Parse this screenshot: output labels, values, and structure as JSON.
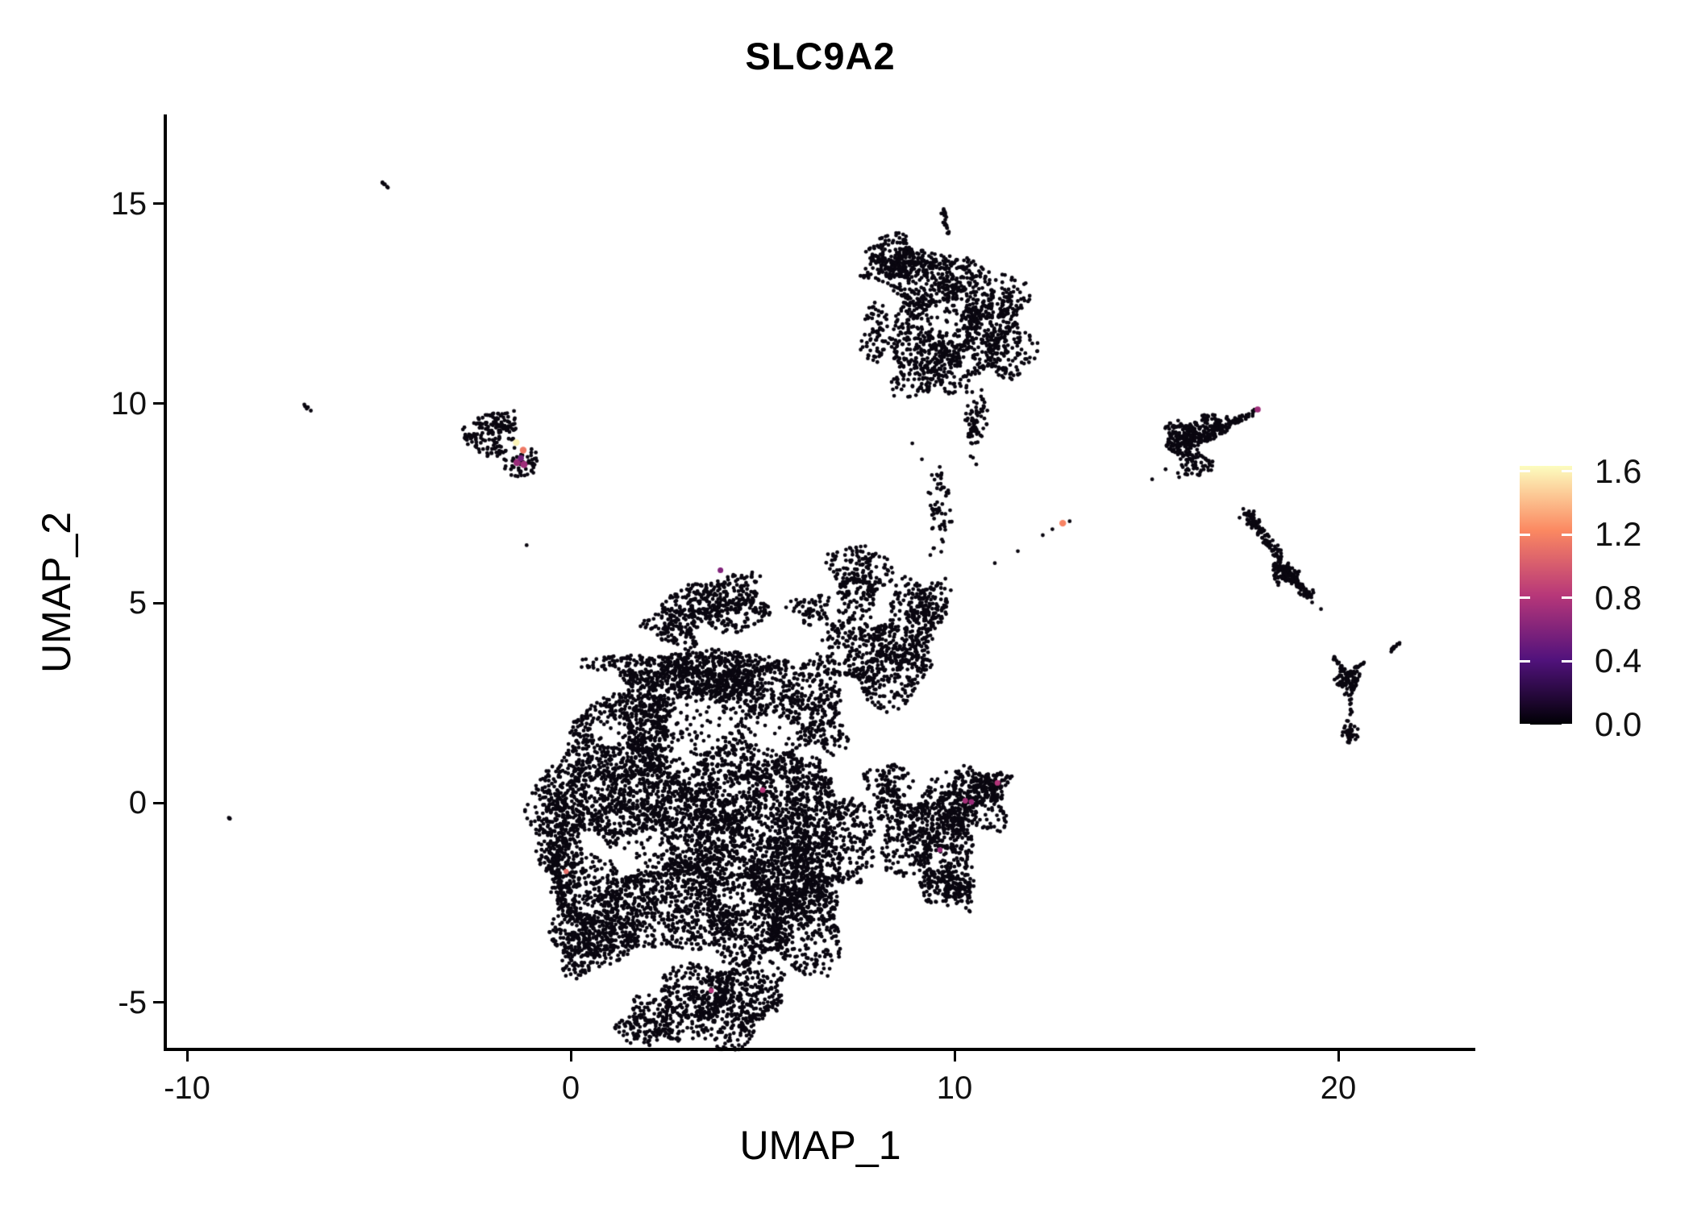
{
  "title": "SLC9A2",
  "colors": {
    "background": "#ffffff",
    "axis": "#000000",
    "text": "#111111",
    "point_black": "#0a0710"
  },
  "axes": {
    "x": {
      "label": "UMAP_1",
      "tick_labels": [
        "-10",
        "0",
        "10",
        "20"
      ],
      "tick_values": [
        -10,
        0,
        10,
        20
      ],
      "range": [
        -10.57,
        23.55
      ]
    },
    "y": {
      "label": "UMAP_2",
      "tick_labels": [
        "15",
        "10",
        "5",
        "0",
        "-5"
      ],
      "tick_values": [
        15,
        10,
        5,
        0,
        -5
      ],
      "range": [
        -6.18,
        17.23
      ]
    }
  },
  "legend": {
    "tick_labels": [
      "1.6",
      "1.2",
      "0.8",
      "0.4",
      "0.0"
    ],
    "tick_values": [
      1.6,
      1.2,
      0.8,
      0.4,
      0.0
    ],
    "max_value": 1.635,
    "palette": [
      [
        0,
        "#000004"
      ],
      [
        0.25,
        "#51127c"
      ],
      [
        0.5,
        "#b73779"
      ],
      [
        0.75,
        "#fb8861"
      ],
      [
        1,
        "#fcfdbf"
      ]
    ]
  },
  "chart_data": {
    "type": "scatter",
    "title": "SLC9A2",
    "xlabel": "UMAP_1",
    "ylabel": "UMAP_2",
    "xlim": [
      -10.57,
      23.55
    ],
    "ylim": [
      -6.18,
      17.23
    ],
    "grid": false,
    "legend_position": "right",
    "point_radius": 2.4,
    "highlight_radius": 3.5,
    "seed": 42,
    "clusters": [
      {
        "cx": 1.2,
        "cy": 0.6,
        "rx": 1.9,
        "ry": 2.0,
        "n": 1100
      },
      {
        "cx": 3.3,
        "cy": -1.6,
        "rx": 2.3,
        "ry": 2.1,
        "n": 1700
      },
      {
        "cx": 5.4,
        "cy": -2.6,
        "rx": 1.7,
        "ry": 1.7,
        "n": 1200
      },
      {
        "cx": 2.4,
        "cy": 1.9,
        "rx": 2.0,
        "ry": 1.1,
        "n": 700
      },
      {
        "cx": 4.9,
        "cy": 0.6,
        "rx": 1.7,
        "ry": 1.5,
        "n": 800
      },
      {
        "cx": 0.9,
        "cy": -2.7,
        "rx": 1.3,
        "ry": 1.4,
        "n": 500
      },
      {
        "cx": 4.0,
        "cy": -4.9,
        "rx": 1.6,
        "ry": 1.0,
        "n": 650
      },
      {
        "cx": 6.6,
        "cy": -0.9,
        "rx": 1.2,
        "ry": 1.7,
        "n": 600
      },
      {
        "cx": 3.0,
        "cy": 3.3,
        "rx": 2.3,
        "ry": 0.55,
        "n": 650
      },
      {
        "cx": 4.6,
        "cy": 2.9,
        "rx": 1.4,
        "ry": 0.8,
        "n": 350
      },
      {
        "cx": 3.9,
        "cy": 5.0,
        "rx": 1.35,
        "ry": 0.65,
        "n": 380
      },
      {
        "cx": 2.7,
        "cy": 4.4,
        "rx": 0.75,
        "ry": 0.5,
        "n": 130
      },
      {
        "cx": 6.3,
        "cy": 2.3,
        "rx": 0.9,
        "ry": 1.1,
        "n": 300
      },
      {
        "cx": -0.2,
        "cy": -1.0,
        "rx": 0.6,
        "ry": 1.7,
        "n": 450
      },
      {
        "cx": 0.3,
        "cy": -3.4,
        "rx": 0.9,
        "ry": 0.8,
        "n": 250
      },
      {
        "cx": 2.2,
        "cy": -5.5,
        "rx": 1.0,
        "ry": 0.6,
        "n": 220
      },
      {
        "cx": 6.3,
        "cy": 4.8,
        "rx": 0.55,
        "ry": 0.45,
        "n": 60
      },
      {
        "cx": 8.3,
        "cy": 0.3,
        "rx": 0.55,
        "ry": 0.75,
        "n": 150
      },
      {
        "cx": 8.1,
        "cy": 3.7,
        "rx": 1.5,
        "ry": 1.1,
        "n": 600
      },
      {
        "cx": 7.5,
        "cy": 5.6,
        "rx": 0.75,
        "ry": 0.95,
        "n": 230
      },
      {
        "cx": 9.1,
        "cy": 4.9,
        "rx": 0.75,
        "ry": 0.8,
        "n": 200
      },
      {
        "cx": 9.6,
        "cy": 7.3,
        "rx": 0.3,
        "ry": 1.1,
        "n": 60
      },
      {
        "cx": 9.4,
        "cy": -0.9,
        "rx": 1.15,
        "ry": 1.35,
        "n": 550
      },
      {
        "cx": 10.4,
        "cy": 0.0,
        "rx": 0.95,
        "ry": 0.75,
        "n": 300
      },
      {
        "cx": 10.9,
        "cy": 0.45,
        "rx": 0.5,
        "ry": 0.4,
        "n": 110
      },
      {
        "cx": 9.9,
        "cy": -2.1,
        "rx": 0.75,
        "ry": 0.6,
        "n": 170
      },
      {
        "cx": 9.8,
        "cy": 12.6,
        "rx": 1.7,
        "ry": 1.25,
        "n": 800
      },
      {
        "cx": 8.5,
        "cy": 13.6,
        "rx": 0.95,
        "ry": 0.55,
        "n": 260
      },
      {
        "cx": 11.1,
        "cy": 11.6,
        "rx": 0.95,
        "ry": 1.05,
        "n": 330
      },
      {
        "cx": 9.4,
        "cy": 10.9,
        "rx": 1.15,
        "ry": 0.8,
        "n": 280
      },
      {
        "cx": 10.55,
        "cy": 9.6,
        "rx": 0.3,
        "ry": 0.9,
        "n": 80
      },
      {
        "cx": 8.0,
        "cy": 11.8,
        "rx": 0.45,
        "ry": 0.75,
        "n": 80
      },
      {
        "cx": 16.0,
        "cy": 9.15,
        "rx": 0.55,
        "ry": 0.42,
        "n": 220
      },
      {
        "cx": 16.8,
        "cy": 9.45,
        "rx": 0.5,
        "ry": 0.3,
        "n": 90
      },
      {
        "cx": 16.25,
        "cy": 8.5,
        "rx": 0.45,
        "ry": 0.4,
        "n": 70
      },
      {
        "cx": 18.6,
        "cy": 5.75,
        "rx": 0.35,
        "ry": 0.3,
        "n": 60
      },
      {
        "cx": 20.25,
        "cy": 3.05,
        "rx": 0.32,
        "ry": 0.3,
        "n": 80
      },
      {
        "cx": 20.3,
        "cy": 1.75,
        "rx": 0.22,
        "ry": 0.25,
        "n": 40
      },
      {
        "cx": -1.95,
        "cy": 9.5,
        "rx": 0.6,
        "ry": 0.38,
        "n": 100
      },
      {
        "cx": -2.6,
        "cy": 9.15,
        "rx": 0.3,
        "ry": 0.22,
        "n": 30
      },
      {
        "cx": -2.0,
        "cy": 8.9,
        "rx": 0.55,
        "ry": 0.3,
        "n": 40
      },
      {
        "cx": -1.25,
        "cy": 8.55,
        "rx": 0.45,
        "ry": 0.3,
        "n": 45
      },
      {
        "cx": -1.6,
        "cy": 8.3,
        "rx": 0.3,
        "ry": 0.2,
        "n": 12
      }
    ],
    "streaks": [
      {
        "x1": 9.7,
        "y1": 14.85,
        "x2": 9.85,
        "y2": 14.25,
        "n": 22,
        "jitter": 0.07
      },
      {
        "x1": 16.7,
        "y1": 9.3,
        "x2": 17.85,
        "y2": 9.78,
        "n": 55,
        "jitter": 0.09
      },
      {
        "x1": 17.6,
        "y1": 7.3,
        "x2": 18.5,
        "y2": 6.1,
        "n": 110,
        "jitter": 0.14
      },
      {
        "x1": 18.4,
        "y1": 6.0,
        "x2": 19.3,
        "y2": 5.15,
        "n": 120,
        "jitter": 0.13
      },
      {
        "x1": 19.85,
        "y1": 3.7,
        "x2": 20.15,
        "y2": 3.3,
        "n": 18,
        "jitter": 0.06
      },
      {
        "x1": 20.35,
        "y1": 3.3,
        "x2": 20.7,
        "y2": 3.55,
        "n": 14,
        "jitter": 0.05
      },
      {
        "x1": 20.3,
        "y1": 2.75,
        "x2": 20.3,
        "y2": 2.2,
        "n": 10,
        "jitter": 0.05
      },
      {
        "x1": 21.35,
        "y1": 3.8,
        "x2": 21.65,
        "y2": 4.05,
        "n": 13,
        "jitter": 0.04
      },
      {
        "x1": -4.95,
        "y1": 15.6,
        "x2": -4.75,
        "y2": 15.35,
        "n": 6,
        "jitter": 0.03
      },
      {
        "x1": -6.95,
        "y1": 9.95,
        "x2": -6.75,
        "y2": 9.8,
        "n": 5,
        "jitter": 0.03
      },
      {
        "x1": -8.95,
        "y1": -0.33,
        "x2": -8.82,
        "y2": -0.47,
        "n": 4,
        "jitter": 0.02
      }
    ],
    "singles": [
      [
        -1.15,
        6.45
      ],
      [
        11.05,
        6.0
      ],
      [
        11.65,
        6.3
      ],
      [
        12.3,
        6.7
      ],
      [
        9.15,
        8.6
      ],
      [
        8.9,
        9.0
      ],
      [
        15.15,
        8.1
      ],
      [
        15.5,
        8.35
      ],
      [
        19.55,
        4.85
      ],
      [
        12.55,
        6.85
      ],
      [
        13.0,
        7.05
      ]
    ],
    "voids": [
      [
        3.4,
        1.9,
        0.9,
        0.65
      ],
      [
        5.3,
        1.7,
        0.6,
        0.5
      ],
      [
        2.0,
        -1.2,
        0.6,
        0.5
      ],
      [
        4.3,
        -2.3,
        0.55,
        0.45
      ],
      [
        9.8,
        12.2,
        0.5,
        0.4
      ],
      [
        1.0,
        1.8,
        0.5,
        0.4
      ]
    ],
    "highlights": [
      {
        "x": -1.42,
        "y": 9.02,
        "v": 1.6,
        "r": 4.2
      },
      {
        "x": -1.24,
        "y": 8.83,
        "v": 1.15,
        "r": 4.2
      },
      {
        "x": -1.4,
        "y": 8.52,
        "v": 0.7,
        "r": 4.5
      },
      {
        "x": -1.22,
        "y": 8.47,
        "v": 0.72,
        "r": 4.5
      },
      {
        "x": -1.3,
        "y": 8.63,
        "v": 0.55,
        "r": 3.8
      },
      {
        "x": 3.9,
        "y": 5.82,
        "v": 0.6,
        "r": 3.5
      },
      {
        "x": 5.0,
        "y": 0.32,
        "v": 0.8,
        "r": 3.5
      },
      {
        "x": -0.12,
        "y": -1.72,
        "v": 1.1,
        "r": 3.2
      },
      {
        "x": 3.66,
        "y": -4.7,
        "v": 0.8,
        "r": 3.2
      },
      {
        "x": 9.62,
        "y": -1.18,
        "v": 0.7,
        "r": 3.2
      },
      {
        "x": 10.28,
        "y": 0.05,
        "v": 0.75,
        "r": 3.4
      },
      {
        "x": 10.44,
        "y": 0.02,
        "v": 0.7,
        "r": 3.4
      },
      {
        "x": 11.12,
        "y": 0.5,
        "v": 0.8,
        "r": 3.6
      },
      {
        "x": 12.82,
        "y": 7.0,
        "v": 1.2,
        "r": 4.2
      },
      {
        "x": 17.9,
        "y": 9.85,
        "v": 0.72,
        "r": 3.8
      }
    ]
  }
}
